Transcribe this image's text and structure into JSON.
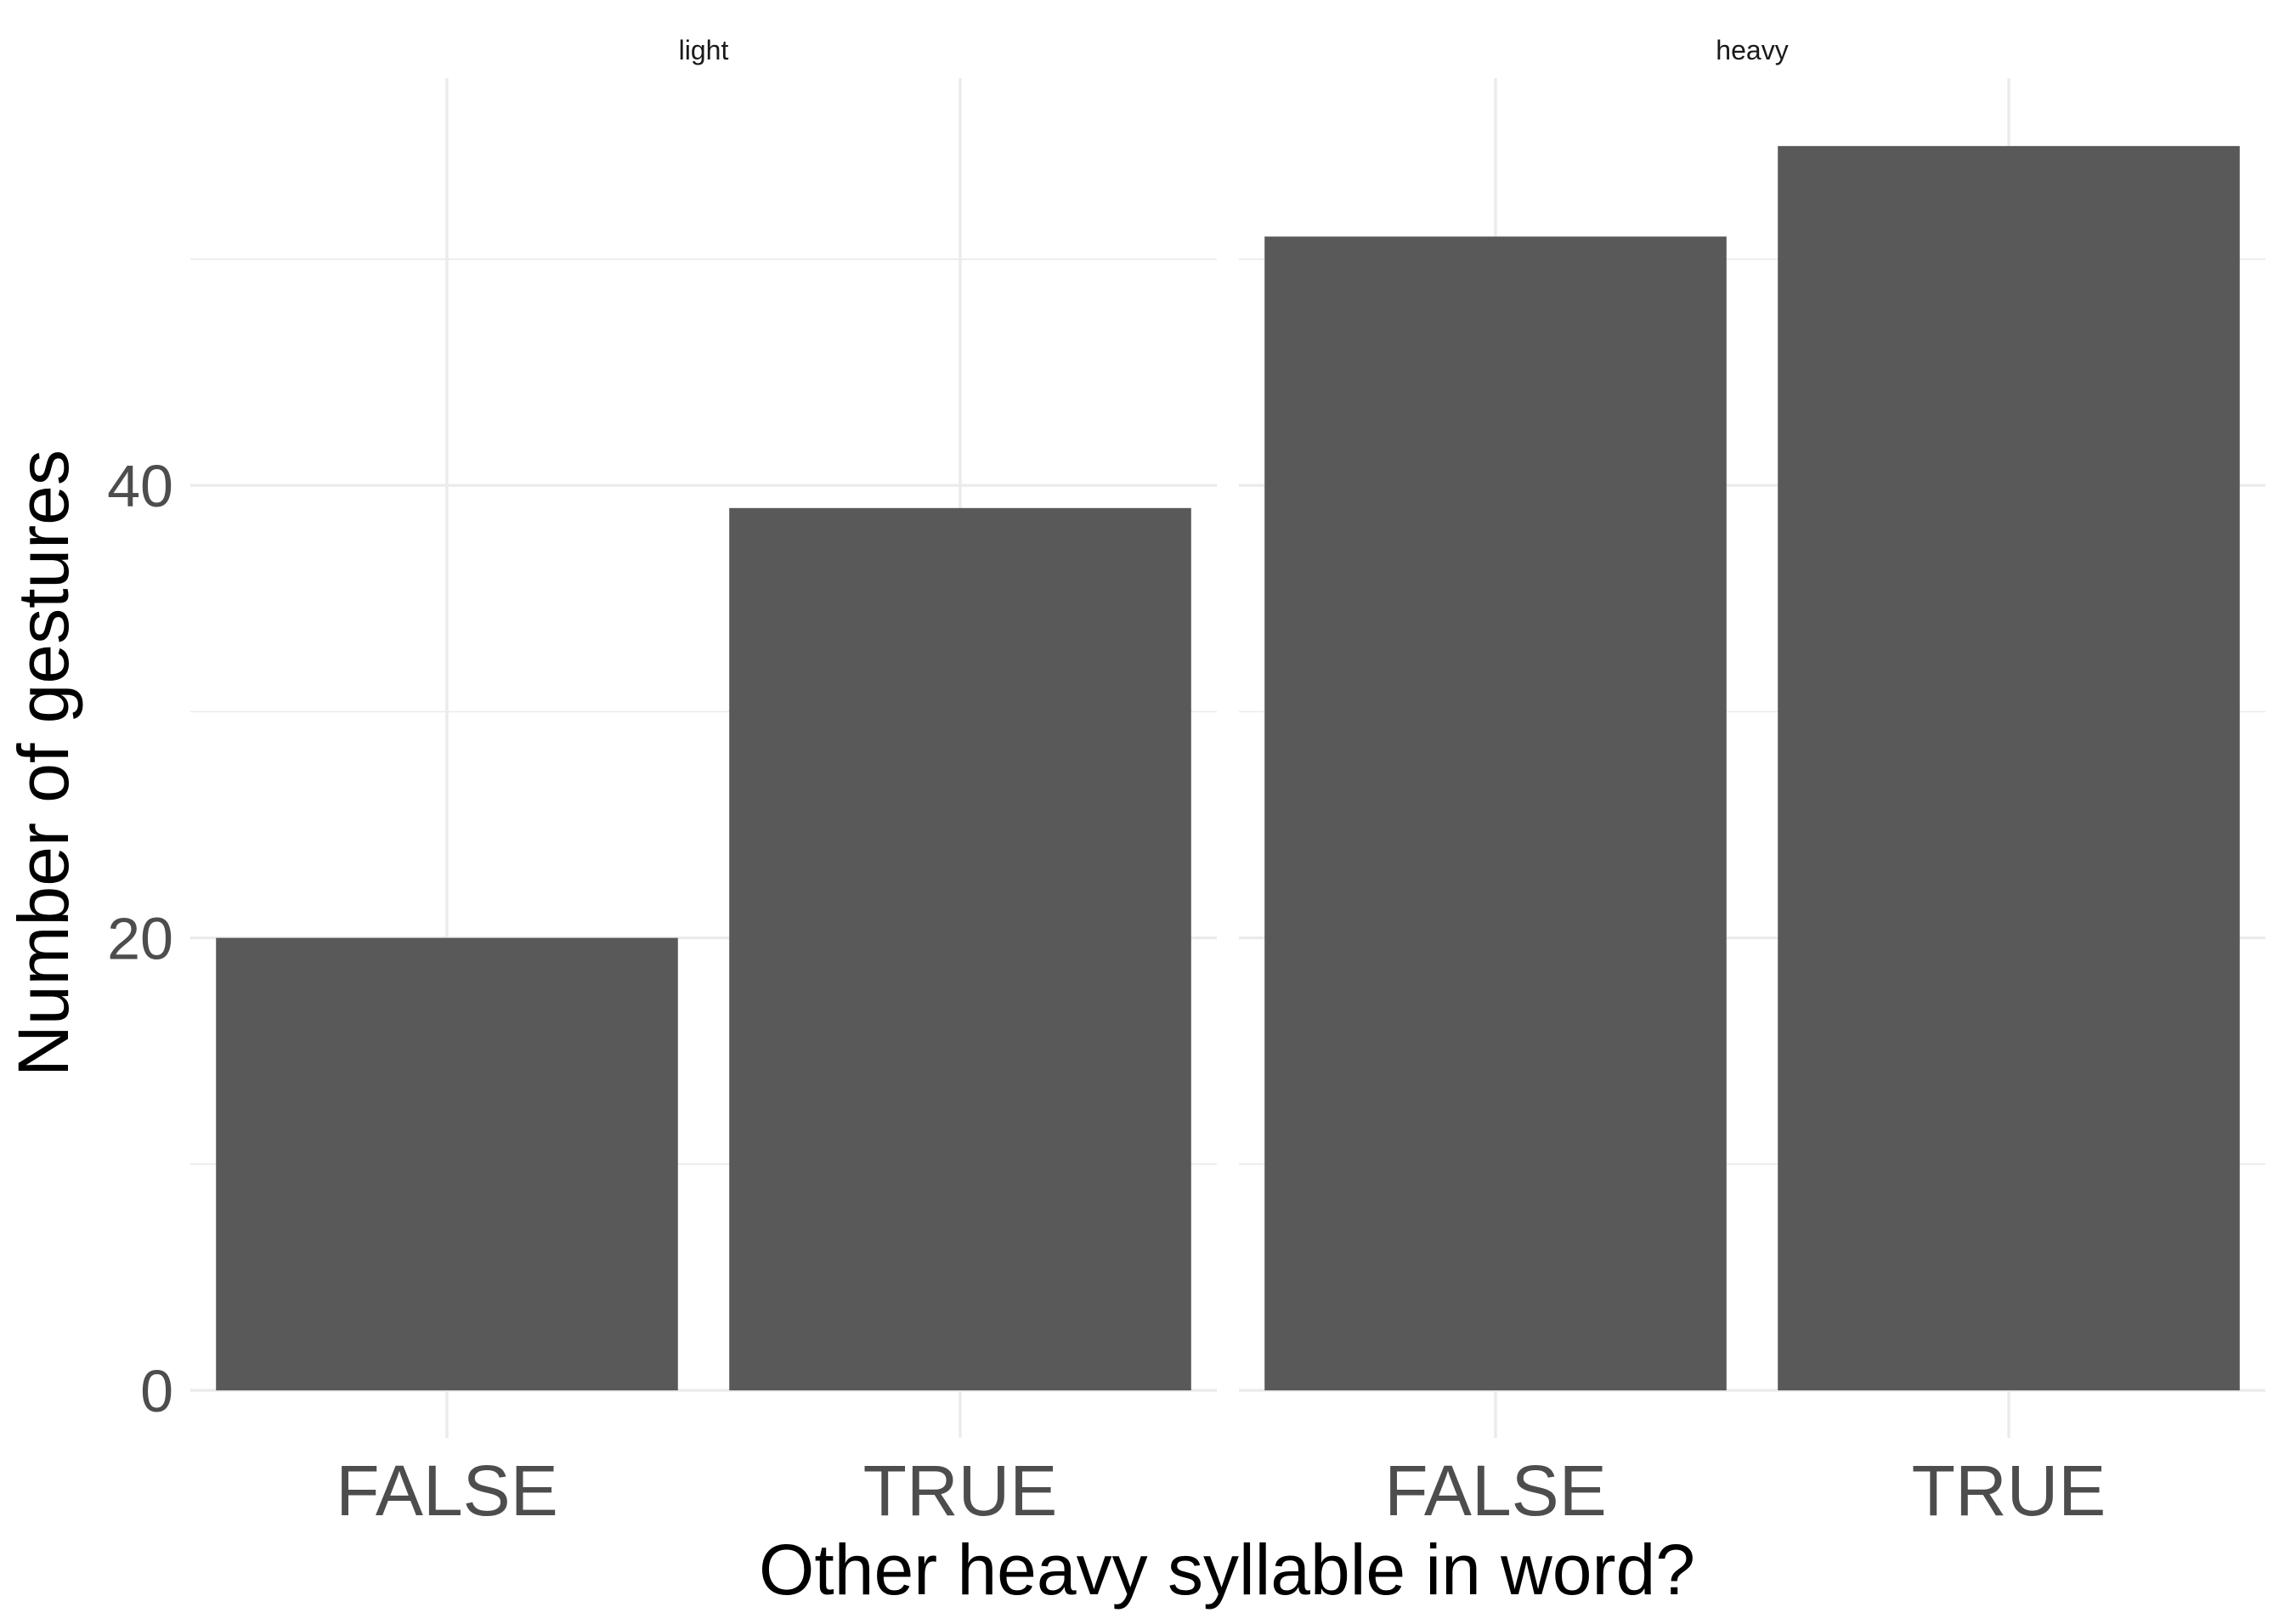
{
  "chart_data": {
    "type": "bar",
    "facets": [
      {
        "label": "light",
        "categories": [
          "FALSE",
          "TRUE"
        ],
        "values": [
          20,
          39
        ]
      },
      {
        "label": "heavy",
        "categories": [
          "FALSE",
          "TRUE"
        ],
        "values": [
          51,
          55
        ]
      }
    ],
    "xlabel": "Other heavy syllable in word?",
    "ylabel": "Number of gestures",
    "ylim": [
      -2.1,
      58
    ],
    "y_ticks": [
      0,
      20,
      40
    ],
    "y_minor_ticks": [
      10,
      30,
      50
    ],
    "grid": true,
    "bar_color": "#595959",
    "grid_color": "#ebebeb",
    "background": "#ffffff"
  }
}
